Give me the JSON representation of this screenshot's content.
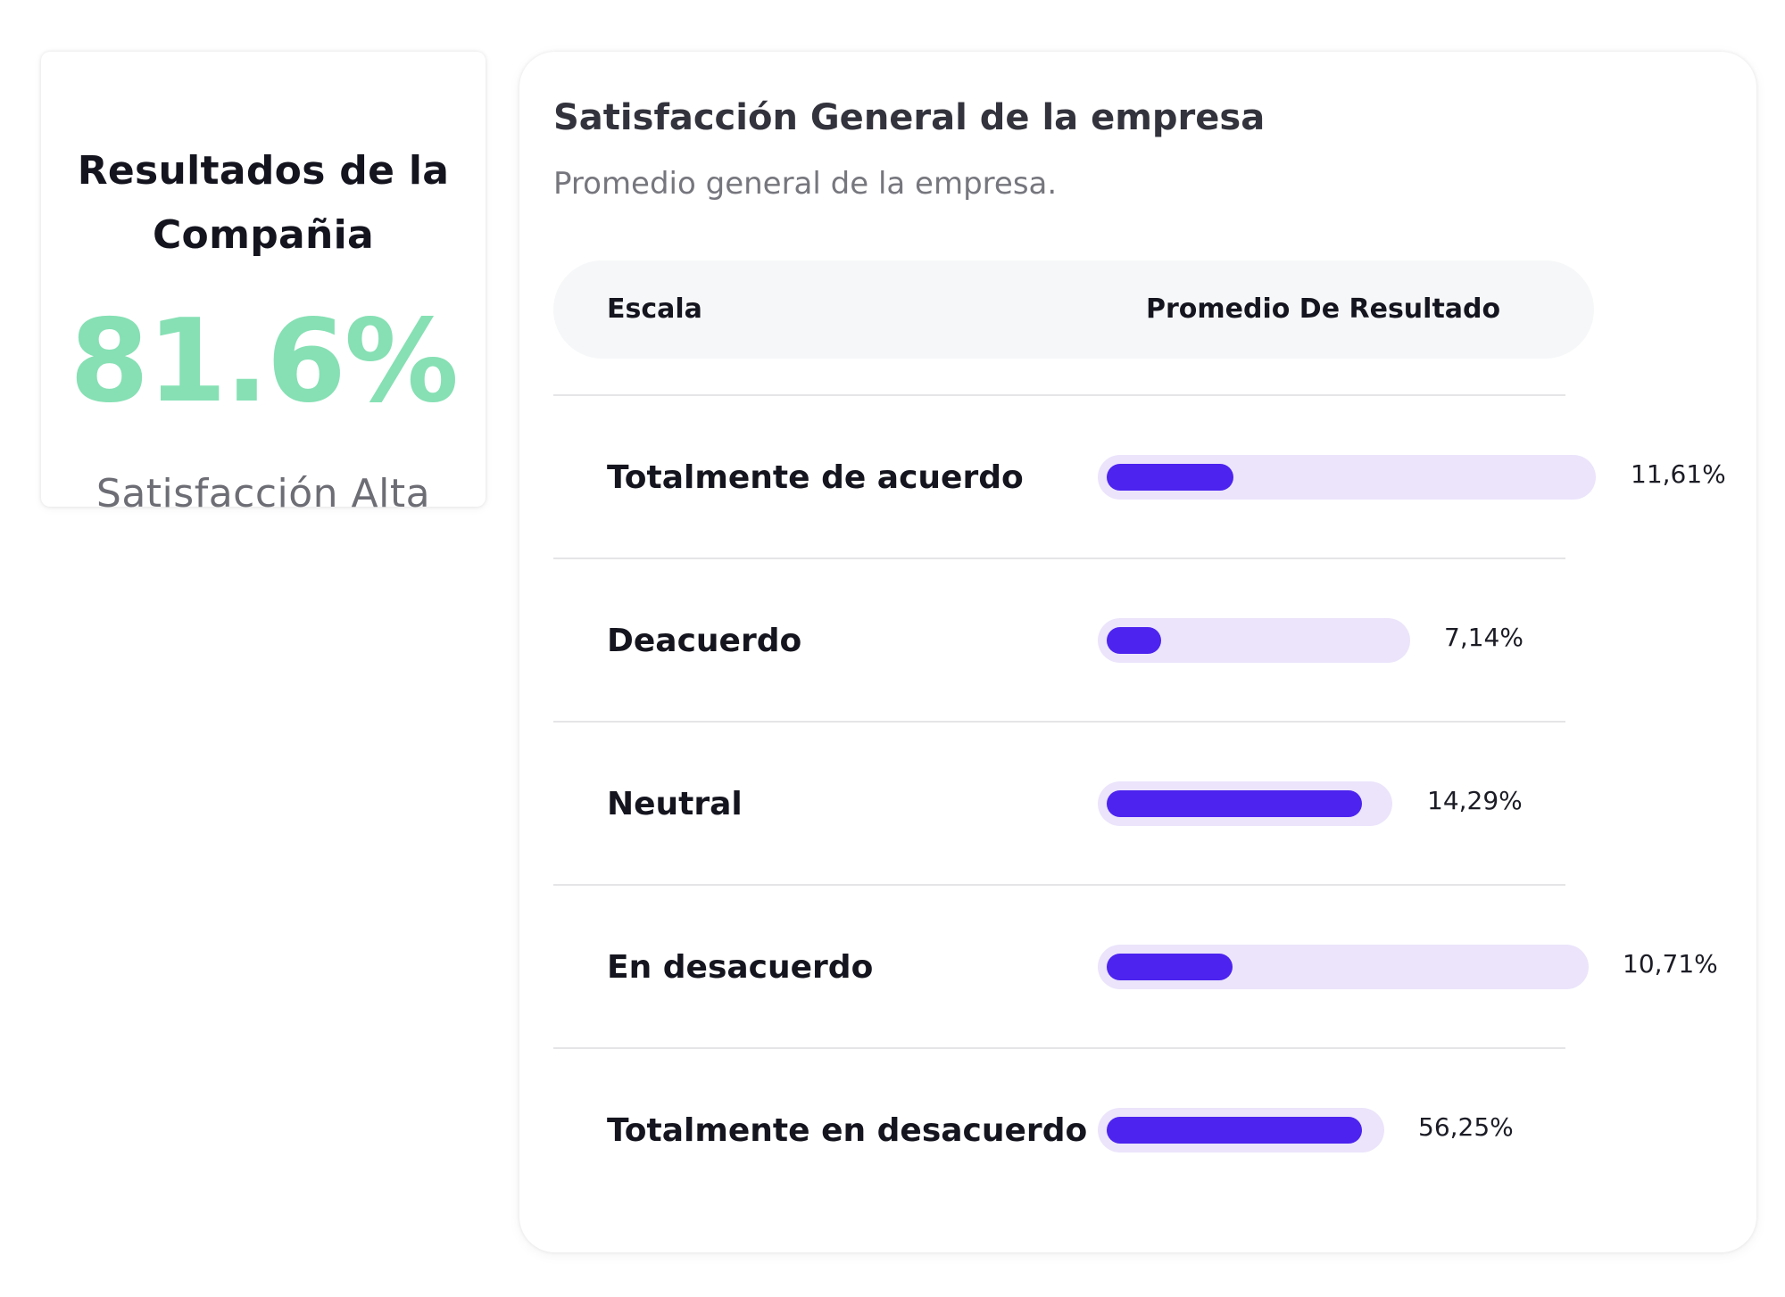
{
  "summary": {
    "title": "Resultados de la Compañia",
    "value": "81.6%",
    "caption": "Satisfacción Alta",
    "value_color": "#86e0b4"
  },
  "main": {
    "title": "Satisfacción General de la empresa",
    "subtitle": "Promedio general de la empresa.",
    "table": {
      "headers": {
        "scale": "Escala",
        "average": "Promedio De Resultado"
      },
      "rows": [
        {
          "label": "Totalmente de acuerdo",
          "value": "11,61%"
        },
        {
          "label": "Deacuerdo",
          "value": "7,14%"
        },
        {
          "label": "Neutral",
          "value": "14,29%"
        },
        {
          "label": "En desacuerdo",
          "value": "10,71%"
        },
        {
          "label": "Totalmente en desacuerdo",
          "value": "56,25%"
        }
      ]
    },
    "colors": {
      "bar_fill": "#4c23ef",
      "bar_track": "#ebe4fb"
    }
  }
}
